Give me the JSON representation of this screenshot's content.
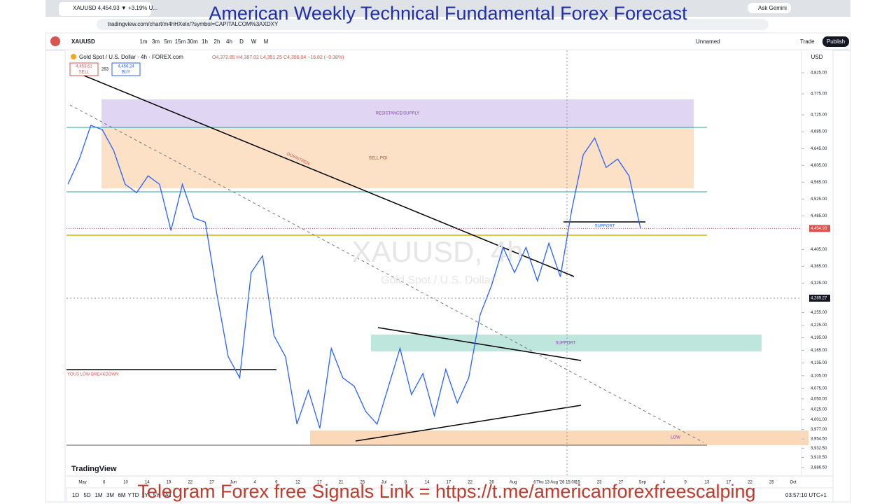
{
  "browser": {
    "tab_title": "XAUUSD 4,454.93 ▼ +3.19% U...",
    "url": "tradingview.com/chart/m4hHXelx/?symbol=CAPITALCOM%3AXDXY",
    "ask": "Ask Gemini"
  },
  "overlay": {
    "title": "American Weekly Technical Fundamental Forex Forecast",
    "footer": "Telegram Forex free Signals  Link =  https://t.me/americanforexfreescalping"
  },
  "toolbar": {
    "symbol": "XAUUSD",
    "intervals": [
      "1m",
      "3m",
      "5m",
      "15m",
      "30m",
      "1h",
      "2h",
      "4h",
      "D",
      "W",
      "M"
    ],
    "layout": "Unnamed",
    "trade": "Trade",
    "publish": "Publish"
  },
  "legend": {
    "instrument": "Gold Spot / U.S. Dollar · 4h · FOREX.com",
    "ohlc": "O4,372.85 H4,387.02 L4,351.25 C4,356.04 −16.82 (−0.38%)",
    "sell_price": "4,453.61",
    "sell": "SELL",
    "spread": "263",
    "buy_price": "4,456.24",
    "buy": "BUY",
    "currency": "USD"
  },
  "watermark": {
    "symbol": "XAUUSD, 4h",
    "name": "Gold Spot / U.S. Dollar"
  },
  "annotations": {
    "resistance": "RESISTANCE/SUPPLY",
    "sell_poi": "SELL POI",
    "downtrend": "DOWNTREN",
    "support_top": "SUPPORT",
    "support_mid": "SUPPORT",
    "low": "LOW",
    "breakdown": "YOUS LOW BREAKDOWN"
  },
  "chart": {
    "type": "line",
    "color": "#2962ff",
    "prices": [
      4560,
      4620,
      4700,
      4690,
      4640,
      4560,
      4540,
      4580,
      4560,
      4450,
      4560,
      4480,
      4470,
      4300,
      4150,
      4100,
      4350,
      4390,
      4200,
      4150,
      3990,
      4070,
      3980,
      4170,
      4100,
      4080,
      4020,
      3990,
      4080,
      4170,
      4060,
      4110,
      4010,
      4120,
      4040,
      4100,
      4250,
      4320,
      4410,
      4350,
      4410,
      4330,
      4420,
      4340,
      4500,
      4630,
      4670,
      4600,
      4620,
      4580,
      4454.93
    ],
    "last_price": {
      "value": 4454.93,
      "label": "4,454.93"
    },
    "crosshair": {
      "value": 4289.27,
      "label": "4,289.27"
    },
    "ylim": [
      3886.5,
      4825
    ],
    "yticks": [
      {
        "value": 4825,
        "label": "4,825.00"
      },
      {
        "value": 4775,
        "label": "4,775.00"
      },
      {
        "value": 4725,
        "label": "4,725.00"
      },
      {
        "value": 4685,
        "label": "4,685.00"
      },
      {
        "value": 4645,
        "label": "4,645.00"
      },
      {
        "value": 4605,
        "label": "4,605.00"
      },
      {
        "value": 4565,
        "label": "4,565.00"
      },
      {
        "value": 4525,
        "label": "4,525.00"
      },
      {
        "value": 4485,
        "label": "4,485.00"
      },
      {
        "value": 4405,
        "label": "4,405.00"
      },
      {
        "value": 4365,
        "label": "4,365.00"
      },
      {
        "value": 4325,
        "label": "4,325.00"
      },
      {
        "value": 4255,
        "label": "4,255.00"
      },
      {
        "value": 4225,
        "label": "4,225.00"
      },
      {
        "value": 4195,
        "label": "4,195.00"
      },
      {
        "value": 4165,
        "label": "4,165.00"
      },
      {
        "value": 4135,
        "label": "4,135.00"
      },
      {
        "value": 4105,
        "label": "4,105.00"
      },
      {
        "value": 4075,
        "label": "4,075.00"
      },
      {
        "value": 4050,
        "label": "4,050.00"
      },
      {
        "value": 4025,
        "label": "4,025.00"
      },
      {
        "value": 4001,
        "label": "4,001.00"
      },
      {
        "value": 3977,
        "label": "3,977.00"
      },
      {
        "value": 3954.5,
        "label": "3,954.50"
      },
      {
        "value": 3932.5,
        "label": "3,932.50"
      },
      {
        "value": 3910.5,
        "label": "3,910.50"
      },
      {
        "value": 3886.5,
        "label": "3,886.50"
      }
    ],
    "time_labels": [
      "May",
      "6",
      "10",
      "14",
      "19",
      "22",
      "27",
      "Jun",
      "4",
      "9",
      "12",
      "17",
      "21",
      "25",
      "Jul",
      "8",
      "14",
      "17",
      "22",
      "26",
      "Aug",
      "6",
      "Thu 13 Aug '26  15:00",
      "19",
      "23",
      "27",
      "Sep",
      "4",
      "9",
      "13",
      "17",
      "22",
      "25",
      "Oct"
    ]
  },
  "bottom": {
    "ranges": [
      "1D",
      "5D",
      "1M",
      "3M",
      "6M",
      "YTD",
      "1Y",
      "5Y",
      "All"
    ],
    "clock": "03:57:10 UTC+1",
    "brand": "TradingView"
  }
}
